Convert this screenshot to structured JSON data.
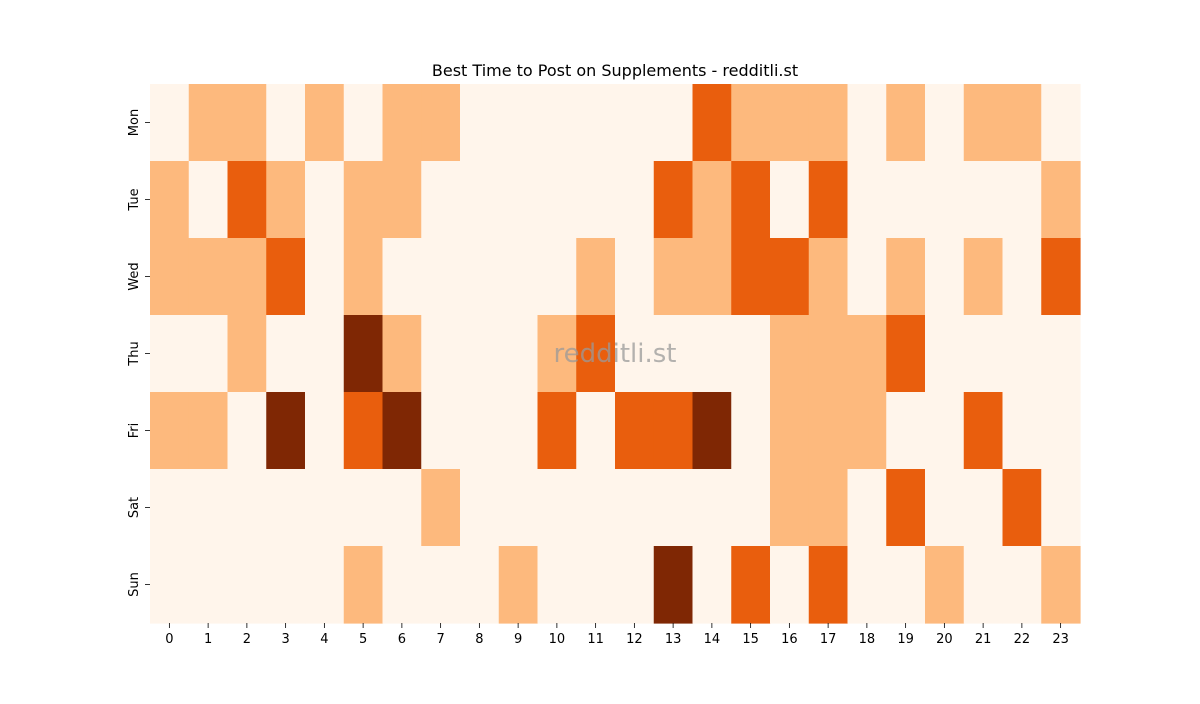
{
  "chart_data": {
    "type": "heatmap",
    "title": "Best Time to Post on Supplements - redditli.st",
    "watermark": "redditli.st",
    "xlabel": "",
    "ylabel": "",
    "x_categories": [
      "0",
      "1",
      "2",
      "3",
      "4",
      "5",
      "6",
      "7",
      "8",
      "9",
      "10",
      "11",
      "12",
      "13",
      "14",
      "15",
      "16",
      "17",
      "18",
      "19",
      "20",
      "21",
      "22",
      "23"
    ],
    "y_categories": [
      "Mon",
      "Tue",
      "Wed",
      "Thu",
      "Fri",
      "Sat",
      "Sun"
    ],
    "values": [
      [
        0,
        1,
        1,
        0,
        1,
        0,
        1,
        1,
        0,
        0,
        0,
        0,
        0,
        0,
        2,
        1,
        1,
        1,
        0,
        1,
        0,
        1,
        1,
        0
      ],
      [
        1,
        0,
        2,
        1,
        0,
        1,
        1,
        0,
        0,
        0,
        0,
        0,
        0,
        2,
        1,
        2,
        0,
        2,
        0,
        0,
        0,
        0,
        0,
        1
      ],
      [
        1,
        1,
        1,
        2,
        0,
        1,
        0,
        0,
        0,
        0,
        0,
        1,
        0,
        1,
        1,
        2,
        2,
        1,
        0,
        1,
        0,
        1,
        0,
        2
      ],
      [
        0,
        0,
        1,
        0,
        0,
        3,
        1,
        0,
        0,
        0,
        1,
        2,
        0,
        0,
        0,
        0,
        1,
        1,
        1,
        2,
        0,
        0,
        0,
        0
      ],
      [
        1,
        1,
        0,
        3,
        0,
        2,
        3,
        0,
        0,
        0,
        2,
        0,
        2,
        2,
        3,
        0,
        1,
        1,
        1,
        0,
        0,
        2,
        0,
        0
      ],
      [
        0,
        0,
        0,
        0,
        0,
        0,
        0,
        1,
        0,
        0,
        0,
        0,
        0,
        0,
        0,
        0,
        1,
        1,
        0,
        2,
        0,
        0,
        2,
        0
      ],
      [
        0,
        0,
        0,
        0,
        0,
        1,
        0,
        0,
        0,
        1,
        0,
        0,
        0,
        3,
        0,
        2,
        0,
        2,
        0,
        0,
        1,
        0,
        0,
        1
      ]
    ],
    "colors": [
      "#fff5eb",
      "#fdb97d",
      "#e95e0d",
      "#7f2704"
    ],
    "grid": false,
    "colorbar": false
  }
}
